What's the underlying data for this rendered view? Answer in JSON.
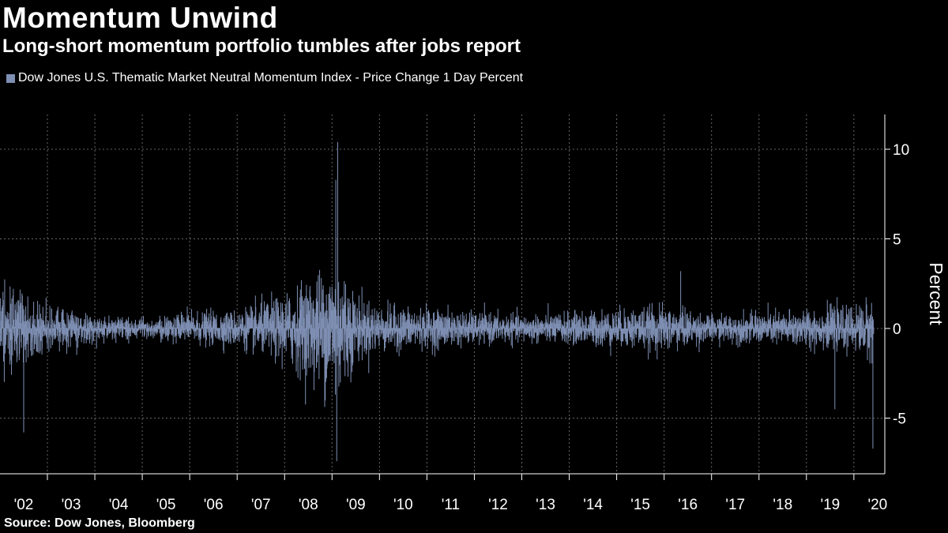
{
  "header": {
    "title": "Momentum Unwind",
    "subtitle": "Long-short momentum portfolio tumbles after jobs report"
  },
  "footer": {
    "source": "Source: Dow Jones, Bloomberg"
  },
  "colors": {
    "background": "#000000",
    "series": "#7e8fb3",
    "grid": "#666666",
    "text": "#ffffff"
  },
  "chart_data": {
    "type": "bar",
    "title": "Momentum Unwind",
    "subtitle": "Long-short momentum portfolio tumbles after jobs report",
    "xlabel": "",
    "ylabel": "Percent",
    "ylim": [
      -8,
      12
    ],
    "yticks": [
      10,
      5,
      0,
      -5
    ],
    "ytick_labels": [
      "10",
      "5",
      "0",
      "-5"
    ],
    "x_range": [
      2001.75,
      2020.7
    ],
    "xtick_labels": [
      "'02",
      "'03",
      "'04",
      "'05",
      "'06",
      "'07",
      "'08",
      "'09",
      "'10",
      "'11",
      "'12",
      "'13",
      "'14",
      "'15",
      "'16",
      "'17",
      "'18",
      "'19",
      "'20"
    ],
    "grid": true,
    "legend_position": "top-left",
    "series": [
      {
        "name": "Dow Jones U.S. Thematic Market Neutral Momentum Index - Price Change 1 Day Percent",
        "frequency": "daily",
        "notable_points": [
          {
            "x": 2002.5,
            "y": -5.8
          },
          {
            "x": 2009.1,
            "y": -7.4
          },
          {
            "x": 2009.12,
            "y": 10.4
          },
          {
            "x": 2009.08,
            "y": 8.3
          },
          {
            "x": 2016.35,
            "y": 3.2
          },
          {
            "x": 2019.6,
            "y": -4.5
          },
          {
            "x": 2020.4,
            "y": -6.7
          }
        ],
        "volatility_envelope": [
          {
            "x": 2002.0,
            "y": 2.2
          },
          {
            "x": 2003.0,
            "y": 1.0
          },
          {
            "x": 2004.0,
            "y": 0.55
          },
          {
            "x": 2005.0,
            "y": 0.5
          },
          {
            "x": 2006.0,
            "y": 0.7
          },
          {
            "x": 2007.0,
            "y": 0.8
          },
          {
            "x": 2008.0,
            "y": 1.5
          },
          {
            "x": 2008.7,
            "y": 2.5
          },
          {
            "x": 2009.1,
            "y": 3.3
          },
          {
            "x": 2009.5,
            "y": 1.5
          },
          {
            "x": 2010.0,
            "y": 1.0
          },
          {
            "x": 2011.0,
            "y": 0.9
          },
          {
            "x": 2012.0,
            "y": 0.7
          },
          {
            "x": 2013.0,
            "y": 0.6
          },
          {
            "x": 2014.0,
            "y": 0.7
          },
          {
            "x": 2015.0,
            "y": 0.85
          },
          {
            "x": 2016.0,
            "y": 1.0
          },
          {
            "x": 2017.0,
            "y": 0.6
          },
          {
            "x": 2018.0,
            "y": 0.7
          },
          {
            "x": 2019.0,
            "y": 0.85
          },
          {
            "x": 2020.0,
            "y": 0.95
          },
          {
            "x": 2020.4,
            "y": 1.4
          }
        ]
      }
    ]
  }
}
